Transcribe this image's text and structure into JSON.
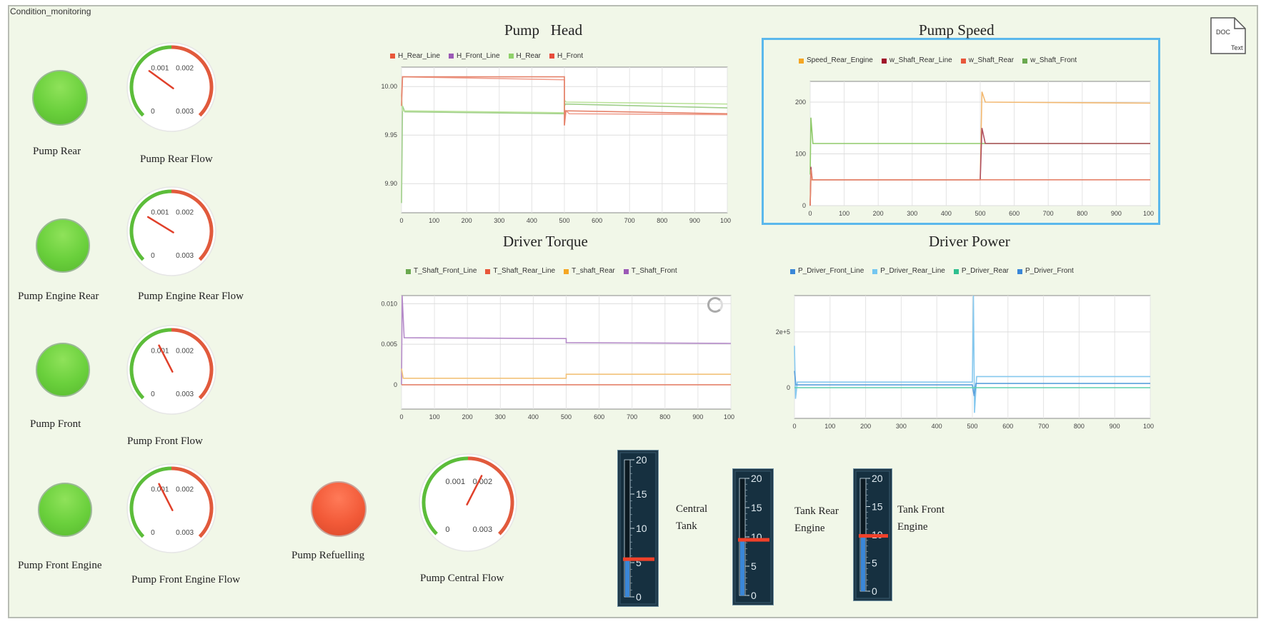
{
  "block_title": "Condition_monitoring",
  "doc_icon": {
    "icon": "doc-text-icon",
    "top": "DOC",
    "bottom": "Text"
  },
  "lamps": [
    {
      "label": "Pump Rear",
      "state": "on",
      "color": "#6ad03c"
    },
    {
      "label": "Pump Engine Rear",
      "state": "on",
      "color": "#6ad03c"
    },
    {
      "label": "Pump Front",
      "state": "on",
      "color": "#6ad03c"
    },
    {
      "label": "Pump Front Engine",
      "state": "on",
      "color": "#6ad03c"
    },
    {
      "label": "Pump Refuelling",
      "state": "off",
      "color": "#f25a38"
    }
  ],
  "gauges": [
    {
      "label": "Pump Rear Flow",
      "ticks": [
        "0.001",
        "0.002",
        "0",
        "0.003"
      ],
      "min": 0,
      "max": 0.003,
      "value": 0.0009
    },
    {
      "label": "Pump Engine Rear  Flow",
      "ticks": [
        "0.001",
        "0.002",
        "0",
        "0.003"
      ],
      "min": 0,
      "max": 0.003,
      "value": 0.00085
    },
    {
      "label": "Pump Front Flow",
      "ticks": [
        "0.001",
        "0.002",
        "0",
        "0.003"
      ],
      "min": 0,
      "max": 0.003,
      "value": 0.0012
    },
    {
      "label": "Pump Front Engine Flow",
      "ticks": [
        "0.001",
        "0.002",
        "0",
        "0.003"
      ],
      "min": 0,
      "max": 0.003,
      "value": 0.0012
    },
    {
      "label": "Pump Central Flow",
      "ticks": [
        "0.001",
        "0.002",
        "0",
        "0.003"
      ],
      "min": 0,
      "max": 0.003,
      "value": 0.0018
    }
  ],
  "tanks": [
    {
      "label": [
        "Central",
        "Tank"
      ],
      "ticks": [
        "20",
        "15",
        "10",
        "5",
        "0"
      ],
      "min": 0,
      "max": 20,
      "value": 5.5
    },
    {
      "label": [
        "Tank Rear",
        "Engine"
      ],
      "ticks": [
        "20",
        "15",
        "10",
        "5",
        "0"
      ],
      "min": 0,
      "max": 20,
      "value": 9.5
    },
    {
      "label": [
        "Tank Front",
        "Engine"
      ],
      "ticks": [
        "20",
        "15",
        "10",
        "5",
        "0"
      ],
      "min": 0,
      "max": 20,
      "value": 9.8
    }
  ],
  "chart_data": [
    {
      "type": "line",
      "title": "Pump   Head",
      "legend": [
        {
          "name": "H_Rear_Line",
          "color": "#e8573a"
        },
        {
          "name": "H_Front_Line",
          "color": "#9b59b6"
        },
        {
          "name": "H_Rear",
          "color": "#8fd16a"
        },
        {
          "name": "H_Front",
          "color": "#e74c3c"
        }
      ],
      "x_ticks": [
        "0",
        "100",
        "200",
        "300",
        "400",
        "500",
        "600",
        "700",
        "800",
        "900",
        "1000"
      ],
      "y_ticks": [
        "10.00",
        "9.95",
        "9.90"
      ],
      "xlim": [
        0,
        1000
      ],
      "ylim": [
        9.87,
        10.02
      ],
      "series": [
        {
          "name": "H_Rear_Line",
          "color": "#f0a090",
          "points": [
            [
              0,
              9.99
            ],
            [
              3,
              10.01
            ],
            [
              500,
              10.007
            ],
            [
              500,
              9.96
            ],
            [
              505,
              9.975
            ],
            [
              515,
              9.972
            ],
            [
              1000,
              9.971
            ]
          ]
        },
        {
          "name": "H_Front_Line",
          "color": "#9fce8a",
          "points": [
            [
              0,
              9.88
            ],
            [
              3,
              9.98
            ],
            [
              10,
              9.974
            ],
            [
              500,
              9.972
            ],
            [
              500,
              9.98
            ],
            [
              503,
              9.982
            ],
            [
              1000,
              9.978
            ]
          ]
        },
        {
          "name": "H_Rear",
          "color": "#bce39c",
          "points": [
            [
              0,
              9.99
            ],
            [
              3,
              9.975
            ],
            [
              500,
              9.973
            ],
            [
              500,
              9.986
            ],
            [
              505,
              9.984
            ],
            [
              1000,
              9.982
            ]
          ]
        },
        {
          "name": "H_Front",
          "color": "#e5826a",
          "points": [
            [
              0,
              9.98
            ],
            [
              3,
              10.01
            ],
            [
              500,
              10.01
            ],
            [
              500,
              9.96
            ],
            [
              503,
              9.975
            ],
            [
              1000,
              9.972
            ]
          ]
        }
      ]
    },
    {
      "type": "line",
      "title": "Pump Speed",
      "legend": [
        {
          "name": "Speed_Rear_Engine",
          "color": "#f5a623"
        },
        {
          "name": "w_Shaft_Rear_Line",
          "color": "#a0142a"
        },
        {
          "name": "w_Shaft_Rear",
          "color": "#e8573a"
        },
        {
          "name": "w_Shaft_Front",
          "color": "#6aa84f"
        }
      ],
      "x_ticks": [
        "0",
        "100",
        "200",
        "300",
        "400",
        "500",
        "600",
        "700",
        "800",
        "900",
        "1000"
      ],
      "y_ticks": [
        "200",
        "100",
        "0"
      ],
      "xlim": [
        0,
        1000
      ],
      "ylim": [
        0,
        240
      ],
      "series": [
        {
          "name": "Speed_Rear_Engine",
          "color": "#f2b870",
          "points": [
            [
              0,
              0
            ],
            [
              2,
              50
            ],
            [
              500,
              50
            ],
            [
              505,
              220
            ],
            [
              515,
              200
            ],
            [
              1000,
              198
            ]
          ]
        },
        {
          "name": "w_Shaft_Front",
          "color": "#8fca6a",
          "points": [
            [
              0,
              60
            ],
            [
              2,
              170
            ],
            [
              8,
              120
            ],
            [
              500,
              120
            ],
            [
              1000,
              120
            ]
          ]
        },
        {
          "name": "w_Shaft_Rear_Line",
          "color": "#b05060",
          "points": [
            [
              0,
              0
            ],
            [
              2,
              75
            ],
            [
              6,
              50
            ],
            [
              500,
              50
            ],
            [
              505,
              150
            ],
            [
              515,
              120
            ],
            [
              1000,
              120
            ]
          ]
        },
        {
          "name": "w_Shaft_Rear",
          "color": "#e5826a",
          "points": [
            [
              0,
              0
            ],
            [
              2,
              70
            ],
            [
              6,
              50
            ],
            [
              500,
              50
            ],
            [
              1000,
              50
            ]
          ]
        }
      ]
    },
    {
      "type": "line",
      "title": "Driver Torque",
      "legend": [
        {
          "name": "T_Shaft_Front_Line",
          "color": "#6aa84f"
        },
        {
          "name": "T_Shaft_Rear_Line",
          "color": "#e8573a"
        },
        {
          "name": "T_shaft_Rear",
          "color": "#f5a623"
        },
        {
          "name": "T_Shaft_Front",
          "color": "#9b59b6"
        }
      ],
      "x_ticks": [
        "0",
        "100",
        "200",
        "300",
        "400",
        "500",
        "600",
        "700",
        "800",
        "900",
        "1000"
      ],
      "y_ticks": [
        "0.010",
        "0.005",
        "0"
      ],
      "xlim": [
        0,
        1000
      ],
      "ylim": [
        -0.003,
        0.011
      ],
      "series": [
        {
          "name": "T_Shaft_Front",
          "color": "#b58bc9",
          "points": [
            [
              0,
              0.0
            ],
            [
              2,
              0.011
            ],
            [
              8,
              0.0058
            ],
            [
              500,
              0.0057
            ],
            [
              500,
              0.0052
            ],
            [
              1000,
              0.0051
            ]
          ]
        },
        {
          "name": "T_shaft_Rear",
          "color": "#f2c27a",
          "points": [
            [
              0,
              0.002
            ],
            [
              5,
              0.0008
            ],
            [
              500,
              0.0008
            ],
            [
              500,
              0.0013
            ],
            [
              1000,
              0.0013
            ]
          ]
        },
        {
          "name": "T_Shaft_Rear_Line",
          "color": "#e5826a",
          "points": [
            [
              0,
              0.0
            ],
            [
              1000,
              0.0
            ]
          ]
        }
      ]
    },
    {
      "type": "line",
      "title": "Driver Power",
      "legend": [
        {
          "name": "P_Driver_Front_Line",
          "color": "#3a87d8"
        },
        {
          "name": "P_Driver_Rear_Line",
          "color": "#74c7f0"
        },
        {
          "name": "P_Driver_Rear",
          "color": "#2fbf8f"
        },
        {
          "name": "P_Driver_Front",
          "color": "#3a87d8"
        }
      ],
      "x_ticks": [
        "0",
        "100",
        "200",
        "300",
        "400",
        "500",
        "600",
        "700",
        "800",
        "900",
        "1000"
      ],
      "y_ticks": [
        "2e+5",
        "0"
      ],
      "xlim": [
        0,
        1000
      ],
      "ylim": [
        -110000,
        330000
      ],
      "series": [
        {
          "name": "P_Driver_Rear_Line",
          "color": "#86c8ee",
          "points": [
            [
              0,
              150000
            ],
            [
              3,
              -40000
            ],
            [
              8,
              20000
            ],
            [
              500,
              20000
            ],
            [
              503,
              330000
            ],
            [
              506,
              -90000
            ],
            [
              512,
              40000
            ],
            [
              1000,
              40000
            ]
          ]
        },
        {
          "name": "P_Driver_Front_Line",
          "color": "#5aa0dc",
          "points": [
            [
              0,
              60000
            ],
            [
              4,
              10000
            ],
            [
              500,
              10000
            ],
            [
              505,
              -30000
            ],
            [
              510,
              15000
            ],
            [
              1000,
              15000
            ]
          ]
        },
        {
          "name": "P_Driver_Rear",
          "color": "#5fd0ae",
          "points": [
            [
              0,
              0
            ],
            [
              1000,
              0
            ]
          ]
        }
      ]
    }
  ]
}
